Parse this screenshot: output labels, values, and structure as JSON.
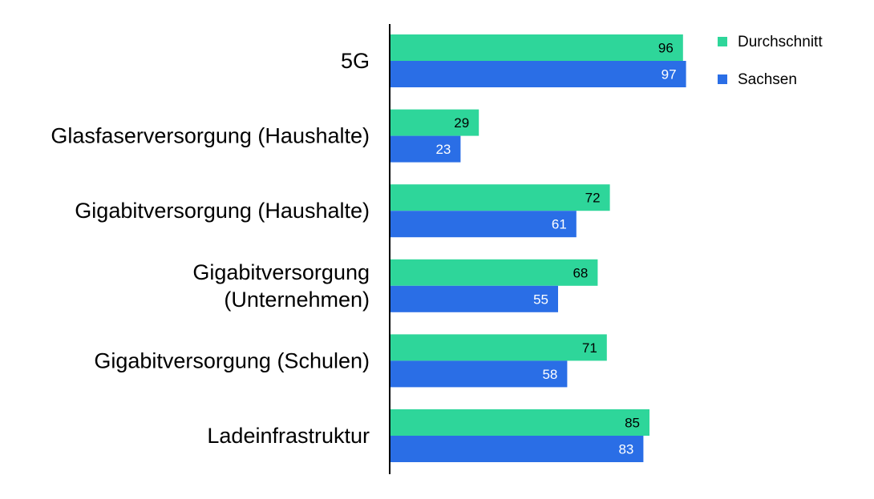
{
  "chart_data": {
    "type": "bar",
    "orientation": "horizontal",
    "categories": [
      [
        "5G"
      ],
      [
        "Glasfaserversorgung (Haushalte)"
      ],
      [
        "Gigabitversorgung (Haushalte)"
      ],
      [
        "Gigabitversorgung",
        "(Unternehmen)"
      ],
      [
        "Gigabitversorgung (Schulen)"
      ],
      [
        "Ladeinfrastruktur"
      ]
    ],
    "series": [
      {
        "name": "Durchschnitt",
        "color": "#2ed69a",
        "label_color": "#000000",
        "values": [
          96,
          29,
          72,
          68,
          71,
          85
        ]
      },
      {
        "name": "Sachsen",
        "color": "#2a6ee6",
        "label_color": "#ffffff",
        "values": [
          97,
          23,
          61,
          55,
          58,
          83
        ]
      }
    ],
    "xlim": [
      0,
      100
    ],
    "grid": false,
    "legend_position": "top-right",
    "title": "",
    "xlabel": "",
    "ylabel": ""
  }
}
